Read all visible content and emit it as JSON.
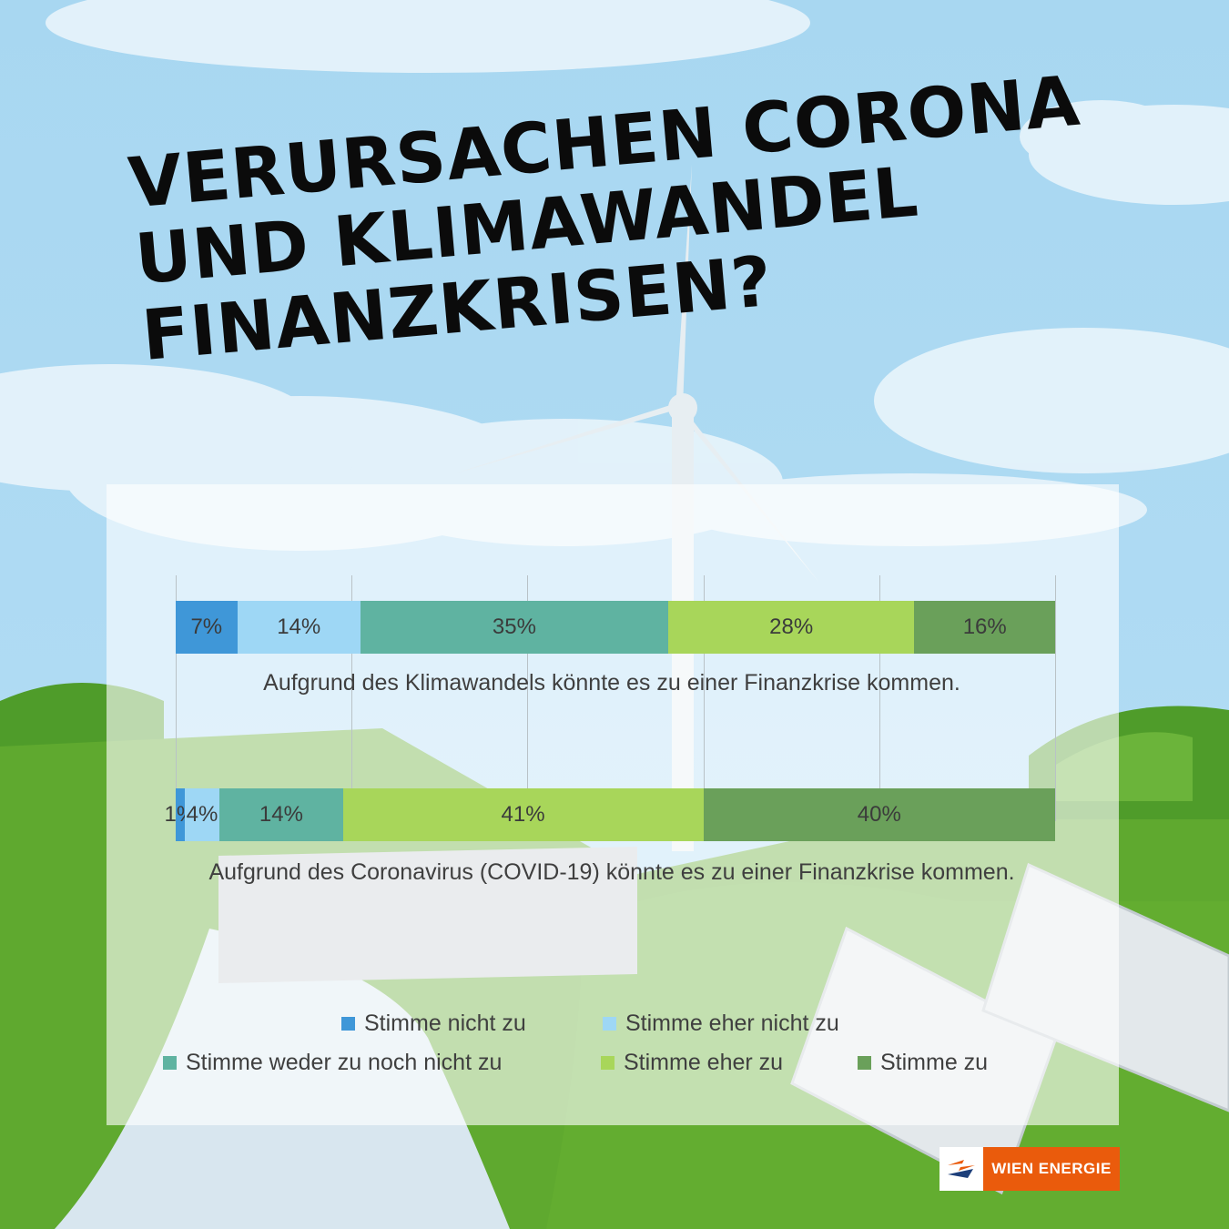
{
  "title": {
    "lines": [
      "Verursachen Corona",
      "und Klimawandel",
      "Finanzkrisen?"
    ]
  },
  "chart_data": {
    "type": "bar",
    "orientation": "horizontal",
    "stacked": "100%",
    "categories": [
      "Aufgrund des Klimawandels könnte es zu einer Finanzkrise kommen.",
      "Aufgrund des Coronavirus (COVID-19) könnte es zu einer Finanzkrise kommen."
    ],
    "series": [
      {
        "name": "Stimme nicht zu",
        "color": "#3f97d8",
        "values": [
          7,
          1
        ]
      },
      {
        "name": "Stimme eher nicht zu",
        "color": "#9ed7f5",
        "values": [
          14,
          4
        ]
      },
      {
        "name": "Stimme weder zu noch nicht zu",
        "color": "#5fb3a1",
        "values": [
          35,
          14
        ]
      },
      {
        "name": "Stimme eher zu",
        "color": "#a8d65a",
        "values": [
          28,
          41
        ]
      },
      {
        "name": "Stimme zu",
        "color": "#6aa05a",
        "values": [
          16,
          40
        ]
      }
    ],
    "value_suffix": "%",
    "legend_position": "bottom",
    "grid": true
  },
  "logo": {
    "text": "WIEN ENERGIE",
    "icon": "wien-energie-logo-icon"
  },
  "colors": {
    "sky": "#a9d8f2",
    "grass": "#5ea82e",
    "brand": "#ea5b0c"
  }
}
